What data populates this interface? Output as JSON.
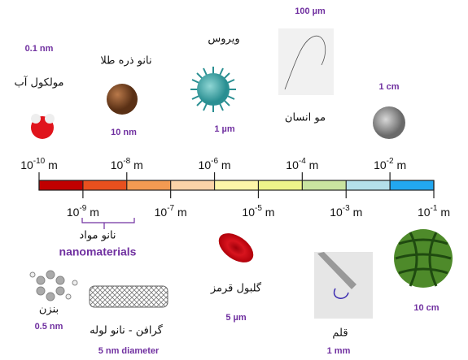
{
  "scale": {
    "ticks": [
      {
        "base": "10",
        "exp": -10,
        "unit": "m"
      },
      {
        "base": "10",
        "exp": -9,
        "unit": "m"
      },
      {
        "base": "10",
        "exp": -8,
        "unit": "m"
      },
      {
        "base": "10",
        "exp": -7,
        "unit": "m"
      },
      {
        "base": "10",
        "exp": -6,
        "unit": "m"
      },
      {
        "base": "10",
        "exp": -5,
        "unit": "m"
      },
      {
        "base": "10",
        "exp": -4,
        "unit": "m"
      },
      {
        "base": "10",
        "exp": -3,
        "unit": "m"
      },
      {
        "base": "10",
        "exp": -2,
        "unit": "m"
      },
      {
        "base": "10",
        "exp": -1,
        "unit": "m"
      }
    ],
    "colors": [
      "#c00000",
      "#e8501e",
      "#f39a52",
      "#fbd3a8",
      "#fdf5a8",
      "#eef48a",
      "#c9e4a0",
      "#b4e0ea",
      "#22a7f0"
    ]
  },
  "items": {
    "water": {
      "label": "مولکول آب",
      "size": "0.1 nm"
    },
    "gold": {
      "label": "نانو ذره طلا",
      "size": "10 nm"
    },
    "virus": {
      "label": "ویروس",
      "size": "1 µm"
    },
    "hair": {
      "label": "مو انسان",
      "size": "100 µm"
    },
    "coin": {
      "size": "1 cm"
    },
    "benzene": {
      "label": "بنزن",
      "size": "0.5 nm"
    },
    "nanotube": {
      "label": "گرافن - نانو لوله",
      "size": "5 nm diameter"
    },
    "rbc": {
      "label": "گلبول قرمز",
      "size": "5 µm"
    },
    "pen": {
      "label": "قلم",
      "size": "1 mm"
    },
    "watermelon": {
      "size": "10 cm"
    }
  },
  "nanomaterials": {
    "label": "نانو مواد",
    "english": "nanomaterials"
  }
}
